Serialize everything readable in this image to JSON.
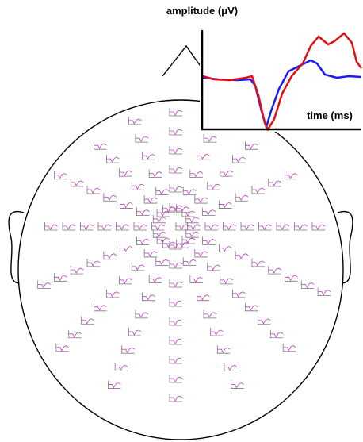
{
  "inset": {
    "y_label": "amplitude (μV)",
    "x_label": "time (ms)"
  }
}
